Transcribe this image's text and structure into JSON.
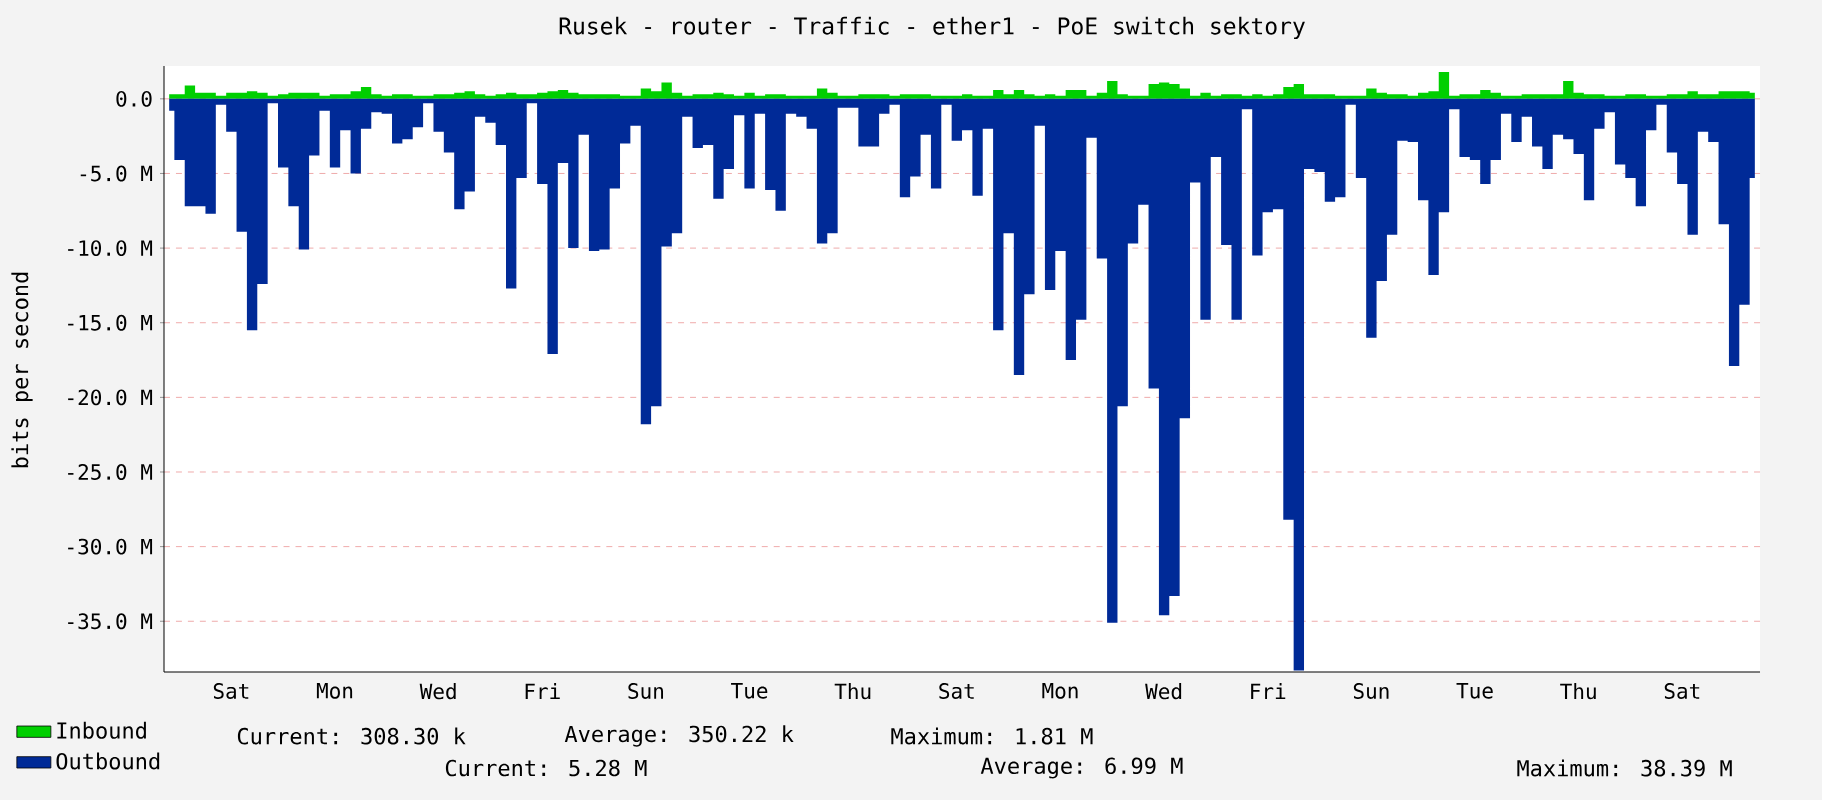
{
  "chart_data": {
    "type": "area",
    "title": "Rusek - router - Traffic - ether1 - PoE switch sektory",
    "ylabel": "bits per second",
    "categories": [
      null,
      null,
      null,
      null,
      null,
      null,
      "Sat",
      null,
      null,
      null,
      null,
      null,
      null,
      null,
      null,
      null,
      "Mon",
      null,
      null,
      null,
      null,
      null,
      null,
      null,
      null,
      null,
      "Wed",
      null,
      null,
      null,
      null,
      null,
      null,
      null,
      null,
      null,
      "Fri",
      null,
      null,
      null,
      null,
      null,
      null,
      null,
      null,
      null,
      "Sun",
      null,
      null,
      null,
      null,
      null,
      null,
      null,
      null,
      null,
      "Tue",
      null,
      null,
      null,
      null,
      null,
      null,
      null,
      null,
      null,
      "Thu",
      null,
      null,
      null,
      null,
      null,
      null,
      null,
      null,
      null,
      "Sat",
      null,
      null,
      null,
      null,
      null,
      null,
      null,
      null,
      null,
      "Mon",
      null,
      null,
      null,
      null,
      null,
      null,
      null,
      null,
      null,
      "Wed",
      null,
      null,
      null,
      null,
      null,
      null,
      null,
      null,
      null,
      "Fri",
      null,
      null,
      null,
      null,
      null,
      null,
      null,
      null,
      null,
      "Sun",
      null,
      null,
      null,
      null,
      null,
      null,
      null,
      null,
      null,
      "Tue",
      null,
      null,
      null,
      null,
      null,
      null,
      null,
      null,
      null,
      "Thu",
      null,
      null,
      null,
      null,
      null,
      null,
      null,
      null,
      null,
      "Sat",
      null,
      null,
      null,
      null,
      null,
      null,
      null
    ],
    "series": [
      {
        "name": "Inbound",
        "color": "#00cf00",
        "values": [
          0.3,
          0.3,
          0.9,
          0.4,
          0.4,
          0.2,
          0.4,
          0.4,
          0.5,
          0.4,
          0.2,
          0.3,
          0.4,
          0.4,
          0.4,
          0.2,
          0.3,
          0.3,
          0.5,
          0.8,
          0.3,
          0.2,
          0.3,
          0.3,
          0.2,
          0.2,
          0.3,
          0.3,
          0.4,
          0.5,
          0.3,
          0.2,
          0.3,
          0.4,
          0.3,
          0.3,
          0.4,
          0.5,
          0.6,
          0.4,
          0.3,
          0.3,
          0.3,
          0.3,
          0.2,
          0.2,
          0.7,
          0.5,
          1.1,
          0.4,
          0.2,
          0.3,
          0.3,
          0.4,
          0.3,
          0.2,
          0.4,
          0.2,
          0.3,
          0.3,
          0.2,
          0.2,
          0.2,
          0.7,
          0.4,
          0.2,
          0.2,
          0.3,
          0.3,
          0.3,
          0.2,
          0.3,
          0.3,
          0.3,
          0.2,
          0.2,
          0.2,
          0.3,
          0.2,
          0.2,
          0.6,
          0.3,
          0.6,
          0.3,
          0.2,
          0.3,
          0.2,
          0.6,
          0.6,
          0.2,
          0.4,
          1.2,
          0.3,
          0.2,
          0.2,
          1.0,
          1.1,
          1.0,
          0.7,
          0.2,
          0.4,
          0.2,
          0.3,
          0.3,
          0.2,
          0.3,
          0.2,
          0.3,
          0.8,
          1.0,
          0.3,
          0.3,
          0.3,
          0.2,
          0.2,
          0.2,
          0.7,
          0.4,
          0.3,
          0.3,
          0.2,
          0.4,
          0.5,
          1.8,
          0.2,
          0.3,
          0.3,
          0.6,
          0.4,
          0.2,
          0.2,
          0.3,
          0.3,
          0.3,
          0.3,
          1.2,
          0.4,
          0.3,
          0.3,
          0.2,
          0.2,
          0.3,
          0.3,
          0.2,
          0.2,
          0.3,
          0.3,
          0.5,
          0.3,
          0.3,
          0.5,
          0.5,
          0.5,
          0.4
        ]
      },
      {
        "name": "Outbound",
        "color": "#002a97",
        "values": [
          -0.8,
          -4.1,
          -7.2,
          -7.2,
          -7.7,
          -0.4,
          -2.2,
          -8.9,
          -15.5,
          -12.4,
          -0.3,
          -4.6,
          -7.2,
          -10.1,
          -3.8,
          -0.8,
          -4.6,
          -2.1,
          -5.0,
          -2.0,
          -0.9,
          -1.0,
          -3.0,
          -2.7,
          -1.9,
          -0.3,
          -2.2,
          -3.6,
          -7.4,
          -6.2,
          -1.2,
          -1.6,
          -3.1,
          -12.7,
          -5.3,
          -0.3,
          -5.7,
          -17.1,
          -4.3,
          -10.0,
          -2.4,
          -10.2,
          -10.1,
          -6.0,
          -3.0,
          -1.8,
          -21.8,
          -20.6,
          -9.9,
          -9.0,
          -1.2,
          -3.3,
          -3.1,
          -6.7,
          -4.7,
          -1.1,
          -6.0,
          -1.0,
          -6.1,
          -7.5,
          -1.0,
          -1.2,
          -2.0,
          -9.7,
          -9.0,
          -0.6,
          -0.6,
          -3.2,
          -3.2,
          -1.0,
          -0.4,
          -6.6,
          -5.2,
          -2.4,
          -6.0,
          -0.4,
          -2.8,
          -2.1,
          -6.5,
          -2.0,
          -15.5,
          -9.0,
          -18.5,
          -13.1,
          -1.8,
          -12.8,
          -10.2,
          -17.5,
          -14.8,
          -2.6,
          -10.7,
          -35.1,
          -20.6,
          -9.7,
          -7.1,
          -19.4,
          -34.6,
          -33.3,
          -21.4,
          -5.6,
          -14.8,
          -3.9,
          -9.8,
          -14.8,
          -0.7,
          -10.5,
          -7.6,
          -7.4,
          -28.2,
          -38.3,
          -4.7,
          -4.9,
          -6.9,
          -6.6,
          -0.4,
          -5.3,
          -16.0,
          -12.2,
          -9.1,
          -2.8,
          -2.9,
          -6.8,
          -11.8,
          -7.6,
          -0.7,
          -3.9,
          -4.1,
          -5.7,
          -4.1,
          -1.0,
          -2.9,
          -1.2,
          -3.2,
          -4.7,
          -2.4,
          -2.7,
          -3.7,
          -6.8,
          -2.0,
          -0.9,
          -4.4,
          -5.3,
          -7.2,
          -2.1,
          -0.4,
          -3.6,
          -5.7,
          -9.1,
          -2.2,
          -2.9,
          -8.4,
          -17.9,
          -13.8,
          -5.3
        ]
      }
    ],
    "ylim": [
      -38.4,
      2.2
    ],
    "yticks": [
      {
        "value": 0,
        "label": "0.0"
      },
      {
        "value": -5,
        "label": "-5.0 M"
      },
      {
        "value": -10,
        "label": "-10.0 M"
      },
      {
        "value": -15,
        "label": "-15.0 M"
      },
      {
        "value": -20,
        "label": "-20.0 M"
      },
      {
        "value": -25,
        "label": "-25.0 M"
      },
      {
        "value": -30,
        "label": "-30.0 M"
      },
      {
        "value": -35,
        "label": "-35.0 M"
      }
    ],
    "grid": "y",
    "legend": "bottom left",
    "annotations": [
      "Current:  308.30 k",
      "Average:  350.22 k",
      "Maximum:  1.81 M",
      "Current:  5.28 M",
      "Average:  6.99 M",
      "Maximum:  38.39 M"
    ]
  }
}
